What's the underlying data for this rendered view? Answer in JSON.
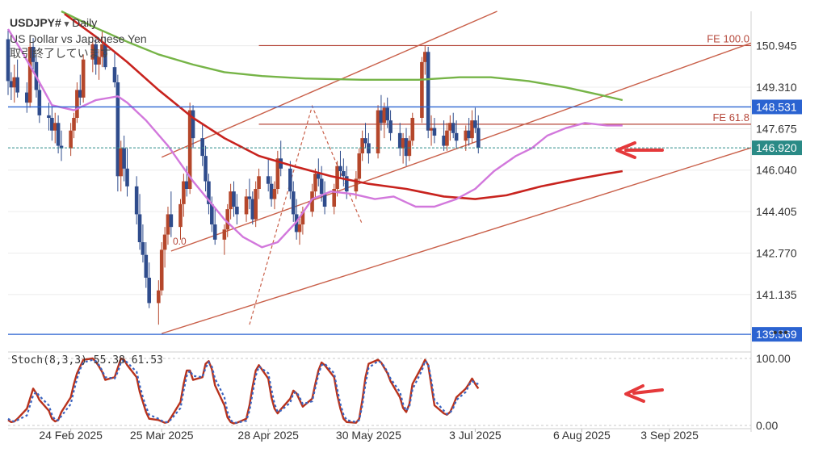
{
  "header": {
    "symbol": "USDJPY#",
    "dropdown": "▾",
    "timeframe": "Daily",
    "description": "US Dollar vs Japanese Yen",
    "status": "取引終了しています"
  },
  "toolbar": {
    "more": "•••"
  },
  "colors": {
    "bull": "#b5472b",
    "bear": "#2f4c8c",
    "ma_fast": "#d278dc",
    "ma_mid": "#c8231e",
    "ma_slow": "#76b447",
    "channel": "#c9604a",
    "fib": "#b5473a",
    "hline": "#2b63d1",
    "bid": "#2a8a86",
    "stoch_k": "#b8321c",
    "stoch_d": "#3a64c0",
    "arrow": "#e5393b"
  },
  "chart_data": {
    "type": "candlestick",
    "timeframe": "Daily",
    "y_ticks": [
      "150.945",
      "149.310",
      "147.675",
      "146.040",
      "144.405",
      "142.770",
      "141.135"
    ],
    "x_ticks": [
      "24 Feb 2025",
      "25 Mar 2025",
      "28 Apr 2025",
      "30 May 2025",
      "3 Jul 2025",
      "6 Aug 2025",
      "3 Sep 2025"
    ],
    "ylim": [
      139.0,
      152.3
    ],
    "x_range": [
      "2025-02-04",
      "2025-09-29"
    ],
    "price_labels": [
      {
        "name": "hline",
        "value": 148.531,
        "text": "148.531"
      },
      {
        "name": "bid",
        "value": 146.92,
        "text": "146.920"
      },
      {
        "name": "hline-low",
        "value": 139.569,
        "text": "139.569"
      }
    ],
    "fib_lines": [
      {
        "label": "FE 100.0",
        "value": 150.95
      },
      {
        "label": "FE 61.8",
        "value": 147.85
      }
    ],
    "fib_line_start": "2025-04-25",
    "fib_mark": "0.0",
    "channel_lines": [
      {
        "x0": "2025-03-28",
        "y0": 142.85,
        "x1": "2025-09-29",
        "y1": 151.05
      },
      {
        "x0": "2025-03-25",
        "y0": 139.6,
        "x1": "2025-09-29",
        "y1": 146.92
      },
      {
        "x0": "2025-03-25",
        "y0": 146.55,
        "x1": "2025-07-10",
        "y1": 152.3
      }
    ],
    "fibo_path": [
      {
        "date": "2025-04-22",
        "value": 139.95
      },
      {
        "date": "2025-05-12",
        "value": 148.56
      },
      {
        "date": "2025-05-28",
        "value": 143.9
      }
    ],
    "candles_start": "2025-02-04",
    "candles": [
      [
        151.2,
        151.6,
        149.0,
        149.55
      ],
      [
        149.55,
        149.9,
        148.8,
        149.3
      ],
      [
        149.3,
        150.2,
        148.7,
        149.7
      ],
      [
        149.7,
        150.4,
        148.9,
        149.1
      ],
      [
        149.1,
        149.5,
        148.3,
        148.7
      ],
      [
        148.7,
        151.1,
        148.5,
        150.9
      ],
      [
        150.9,
        151.25,
        150.0,
        150.3
      ],
      [
        150.3,
        150.6,
        148.9,
        149.2
      ],
      [
        149.2,
        149.5,
        147.9,
        148.2
      ],
      [
        148.2,
        148.7,
        147.6,
        148.1
      ],
      [
        148.1,
        148.6,
        147.2,
        147.6
      ],
      [
        147.6,
        148.3,
        147.1,
        147.9
      ],
      [
        147.9,
        148.2,
        146.7,
        147.0
      ],
      [
        147.0,
        147.6,
        146.4,
        146.9
      ],
      [
        146.9,
        147.9,
        146.6,
        147.6
      ],
      [
        147.6,
        148.3,
        147.3,
        148.1
      ],
      [
        148.1,
        149.5,
        147.9,
        149.2
      ],
      [
        149.2,
        149.8,
        148.6,
        148.9
      ],
      [
        148.9,
        150.6,
        148.7,
        150.4
      ],
      [
        150.4,
        151.3,
        149.9,
        151.0
      ],
      [
        151.0,
        151.2,
        149.8,
        150.2
      ],
      [
        150.2,
        150.8,
        149.6,
        150.5
      ],
      [
        150.5,
        151.5,
        150.1,
        151.0
      ],
      [
        151.0,
        151.3,
        150.0,
        150.1
      ],
      [
        150.1,
        150.7,
        149.3,
        149.5
      ],
      [
        149.5,
        149.8,
        145.2,
        145.8
      ],
      [
        145.8,
        147.2,
        145.2,
        146.9
      ],
      [
        146.9,
        147.4,
        145.6,
        146.1
      ],
      [
        146.1,
        146.9,
        145.0,
        145.4
      ],
      [
        145.4,
        145.8,
        143.9,
        144.3
      ],
      [
        144.3,
        145.1,
        142.9,
        143.2
      ],
      [
        143.2,
        143.9,
        142.4,
        142.7
      ],
      [
        142.7,
        143.2,
        141.4,
        141.8
      ],
      [
        141.8,
        142.4,
        140.6,
        140.8
      ],
      [
        140.8,
        141.7,
        139.95,
        141.3
      ],
      [
        141.3,
        143.2,
        141.1,
        142.9
      ],
      [
        142.9,
        143.8,
        142.2,
        143.5
      ],
      [
        143.5,
        144.6,
        143.1,
        144.3
      ],
      [
        144.3,
        145.2,
        143.4,
        143.8
      ],
      [
        143.8,
        144.9,
        143.3,
        144.7
      ],
      [
        144.7,
        145.9,
        144.2,
        145.6
      ],
      [
        145.6,
        146.2,
        145.0,
        145.3
      ],
      [
        145.3,
        148.7,
        145.1,
        148.4
      ],
      [
        148.4,
        148.6,
        146.9,
        147.3
      ],
      [
        147.3,
        147.9,
        146.2,
        146.6
      ],
      [
        146.6,
        147.0,
        145.2,
        145.6
      ],
      [
        145.6,
        145.9,
        144.3,
        144.7
      ],
      [
        144.7,
        145.0,
        143.6,
        143.9
      ],
      [
        143.9,
        144.5,
        143.1,
        143.3
      ],
      [
        143.3,
        143.9,
        142.7,
        143.7
      ],
      [
        143.7,
        144.7,
        143.4,
        144.5
      ],
      [
        144.5,
        145.5,
        144.1,
        145.2
      ],
      [
        145.2,
        145.6,
        144.2,
        144.6
      ],
      [
        144.6,
        145.1,
        143.9,
        144.3
      ],
      [
        144.3,
        145.3,
        144.0,
        145.0
      ],
      [
        145.0,
        145.7,
        144.5,
        144.9
      ],
      [
        144.9,
        145.2,
        143.9,
        144.1
      ],
      [
        144.1,
        145.6,
        143.8,
        145.3
      ],
      [
        145.3,
        146.1,
        144.9,
        145.8
      ],
      [
        145.8,
        146.5,
        145.2,
        145.5
      ],
      [
        145.5,
        145.8,
        144.6,
        144.9
      ],
      [
        144.9,
        145.6,
        144.5,
        145.3
      ],
      [
        145.3,
        146.8,
        145.1,
        146.5
      ],
      [
        146.5,
        147.2,
        145.8,
        146.1
      ],
      [
        146.1,
        146.4,
        144.9,
        145.2
      ],
      [
        145.2,
        145.6,
        144.0,
        144.3
      ],
      [
        144.3,
        144.9,
        143.3,
        143.6
      ],
      [
        143.6,
        144.2,
        143.1,
        143.9
      ],
      [
        143.9,
        144.6,
        143.5,
        144.4
      ],
      [
        144.4,
        145.5,
        144.2,
        145.2
      ],
      [
        145.2,
        146.1,
        144.9,
        145.9
      ],
      [
        145.9,
        146.5,
        145.4,
        145.7
      ],
      [
        145.7,
        146.2,
        144.8,
        145.1
      ],
      [
        145.1,
        145.6,
        144.3,
        144.6
      ],
      [
        144.6,
        145.5,
        144.3,
        145.3
      ],
      [
        145.3,
        146.4,
        145.0,
        146.2
      ],
      [
        146.2,
        146.8,
        145.7,
        146.0
      ],
      [
        146.0,
        146.5,
        145.4,
        145.8
      ],
      [
        145.8,
        146.2,
        144.9,
        145.2
      ],
      [
        145.2,
        146.0,
        144.9,
        145.7
      ],
      [
        145.7,
        146.9,
        145.5,
        146.7
      ],
      [
        146.7,
        147.6,
        146.4,
        147.3
      ],
      [
        147.3,
        147.9,
        146.9,
        147.1
      ],
      [
        147.1,
        147.5,
        146.3,
        146.7
      ],
      [
        146.7,
        148.6,
        146.5,
        148.4
      ],
      [
        148.4,
        149.0,
        147.6,
        147.9
      ],
      [
        147.9,
        148.7,
        147.3,
        148.5
      ],
      [
        148.5,
        148.9,
        147.7,
        148.0
      ],
      [
        148.0,
        148.4,
        147.2,
        147.5
      ],
      [
        147.5,
        147.9,
        146.6,
        146.9
      ],
      [
        146.9,
        147.5,
        146.3,
        147.3
      ],
      [
        147.3,
        147.7,
        146.2,
        146.6
      ],
      [
        146.6,
        147.4,
        146.4,
        147.2
      ],
      [
        147.2,
        148.3,
        147.0,
        148.1
      ],
      [
        148.1,
        150.5,
        147.9,
        150.3
      ],
      [
        150.3,
        150.95,
        149.8,
        150.7
      ],
      [
        150.7,
        150.9,
        147.3,
        147.6
      ],
      [
        147.6,
        148.2,
        147.0,
        147.7
      ],
      [
        147.7,
        148.1,
        147.1,
        147.4
      ],
      [
        147.4,
        148.0,
        146.8,
        147.0
      ],
      [
        147.0,
        147.9,
        146.8,
        147.6
      ],
      [
        147.6,
        148.2,
        147.2,
        147.9
      ],
      [
        147.9,
        148.3,
        147.3,
        147.5
      ],
      [
        147.5,
        148.0,
        146.9,
        147.2
      ],
      [
        147.2,
        147.8,
        146.8,
        147.6
      ],
      [
        147.6,
        148.1,
        147.0,
        147.3
      ],
      [
        147.3,
        148.4,
        147.1,
        148.0
      ],
      [
        148.0,
        148.5,
        147.5,
        147.7
      ],
      [
        147.7,
        148.2,
        146.7,
        146.92
      ]
    ],
    "ma_fast": [
      {
        "date": "2025-02-04",
        "value": 151.6
      },
      {
        "date": "2025-02-08",
        "value": 150.8
      },
      {
        "date": "2025-02-14",
        "value": 149.5
      },
      {
        "date": "2025-02-18",
        "value": 148.6
      },
      {
        "date": "2025-02-25",
        "value": 148.4
      },
      {
        "date": "2025-03-04",
        "value": 148.8
      },
      {
        "date": "2025-03-11",
        "value": 148.95
      },
      {
        "date": "2025-03-14",
        "value": 148.7
      },
      {
        "date": "2025-03-20",
        "value": 148.0
      },
      {
        "date": "2025-03-27",
        "value": 147.0
      },
      {
        "date": "2025-04-04",
        "value": 145.6
      },
      {
        "date": "2025-04-14",
        "value": 144.1
      },
      {
        "date": "2025-04-20",
        "value": 143.4
      },
      {
        "date": "2025-04-26",
        "value": 143.0
      },
      {
        "date": "2025-05-01",
        "value": 143.2
      },
      {
        "date": "2025-05-07",
        "value": 144.0
      },
      {
        "date": "2025-05-12",
        "value": 144.9
      },
      {
        "date": "2025-05-18",
        "value": 145.2
      },
      {
        "date": "2025-05-25",
        "value": 145.1
      },
      {
        "date": "2025-06-01",
        "value": 144.9
      },
      {
        "date": "2025-06-07",
        "value": 145.0
      },
      {
        "date": "2025-06-14",
        "value": 144.6
      },
      {
        "date": "2025-06-20",
        "value": 144.6
      },
      {
        "date": "2025-06-27",
        "value": 144.9
      },
      {
        "date": "2025-07-03",
        "value": 145.3
      },
      {
        "date": "2025-07-09",
        "value": 146.0
      },
      {
        "date": "2025-07-16",
        "value": 146.6
      },
      {
        "date": "2025-07-21",
        "value": 146.9
      },
      {
        "date": "2025-07-26",
        "value": 147.4
      },
      {
        "date": "2025-08-01",
        "value": 147.7
      },
      {
        "date": "2025-08-07",
        "value": 147.9
      },
      {
        "date": "2025-08-14",
        "value": 147.8
      },
      {
        "date": "2025-08-19",
        "value": 147.8
      }
    ],
    "ma_mid": [
      {
        "date": "2025-02-22",
        "value": 152.2
      },
      {
        "date": "2025-03-04",
        "value": 151.3
      },
      {
        "date": "2025-03-14",
        "value": 150.3
      },
      {
        "date": "2025-03-24",
        "value": 149.2
      },
      {
        "date": "2025-04-04",
        "value": 148.1
      },
      {
        "date": "2025-04-14",
        "value": 147.3
      },
      {
        "date": "2025-04-25",
        "value": 146.6
      },
      {
        "date": "2025-05-06",
        "value": 146.2
      },
      {
        "date": "2025-05-18",
        "value": 145.8
      },
      {
        "date": "2025-05-30",
        "value": 145.5
      },
      {
        "date": "2025-06-11",
        "value": 145.3
      },
      {
        "date": "2025-06-23",
        "value": 145.0
      },
      {
        "date": "2025-07-03",
        "value": 144.9
      },
      {
        "date": "2025-07-13",
        "value": 145.05
      },
      {
        "date": "2025-07-24",
        "value": 145.4
      },
      {
        "date": "2025-08-05",
        "value": 145.7
      },
      {
        "date": "2025-08-14",
        "value": 145.9
      },
      {
        "date": "2025-08-19",
        "value": 146.0
      }
    ],
    "ma_slow": [
      {
        "date": "2025-02-21",
        "value": 152.3
      },
      {
        "date": "2025-03-03",
        "value": 151.7
      },
      {
        "date": "2025-03-14",
        "value": 151.1
      },
      {
        "date": "2025-03-24",
        "value": 150.6
      },
      {
        "date": "2025-04-04",
        "value": 150.2
      },
      {
        "date": "2025-04-14",
        "value": 149.9
      },
      {
        "date": "2025-04-26",
        "value": 149.75
      },
      {
        "date": "2025-05-10",
        "value": 149.65
      },
      {
        "date": "2025-05-28",
        "value": 149.6
      },
      {
        "date": "2025-06-15",
        "value": 149.6
      },
      {
        "date": "2025-06-28",
        "value": 149.7
      },
      {
        "date": "2025-07-08",
        "value": 149.7
      },
      {
        "date": "2025-07-20",
        "value": 149.55
      },
      {
        "date": "2025-08-01",
        "value": 149.3
      },
      {
        "date": "2025-08-12",
        "value": 149.0
      },
      {
        "date": "2025-08-19",
        "value": 148.8
      }
    ],
    "stoch": {
      "label": "Stoch(8,3,3)",
      "k_value": "55.38",
      "d_value": "61.53",
      "y_ticks": [
        "100.00",
        "0.00"
      ],
      "k": [
        8,
        5,
        6,
        10,
        25,
        40,
        55,
        48,
        38,
        22,
        10,
        6,
        8,
        20,
        42,
        62,
        78,
        88,
        98,
        100,
        95,
        88,
        80,
        68,
        72,
        86,
        100,
        98,
        90,
        72,
        50,
        35,
        20,
        10,
        8,
        6,
        4,
        5,
        12,
        35,
        62,
        82,
        82,
        68,
        72,
        92,
        96,
        84,
        60,
        30,
        12,
        5,
        3,
        4,
        10,
        30,
        58,
        82,
        90,
        70,
        42,
        25,
        18,
        24,
        40,
        52,
        48,
        38,
        28,
        40,
        62,
        82,
        94,
        90,
        72,
        45,
        25,
        10,
        5,
        4,
        10,
        38,
        72,
        92,
        98,
        94,
        86,
        78,
        66,
        42,
        26,
        20,
        32,
        62,
        88,
        98,
        90,
        60,
        30,
        18,
        16,
        20,
        30,
        42,
        55,
        62,
        70,
        62,
        55
      ],
      "d": [
        10,
        7,
        6,
        8,
        15,
        30,
        45,
        50,
        44,
        30,
        16,
        8,
        8,
        14,
        32,
        52,
        70,
        84,
        94,
        98,
        96,
        90,
        82,
        72,
        70,
        80,
        94,
        98,
        94,
        80,
        60,
        42,
        28,
        16,
        10,
        7,
        5,
        5,
        9,
        26,
        52,
        74,
        82,
        74,
        72,
        86,
        94,
        88,
        70,
        42,
        20,
        8,
        4,
        4,
        7,
        22,
        48,
        74,
        88,
        78,
        54,
        32,
        20,
        22,
        34,
        48,
        50,
        42,
        32,
        36,
        56,
        76,
        90,
        92,
        78,
        54,
        32,
        16,
        8,
        5,
        8,
        30,
        62,
        86,
        96,
        94,
        88,
        80,
        70,
        50,
        32,
        22,
        28,
        54,
        82,
        96,
        92,
        68,
        38,
        22,
        17,
        19,
        26,
        38,
        50,
        60,
        66,
        64,
        61.53
      ]
    }
  }
}
